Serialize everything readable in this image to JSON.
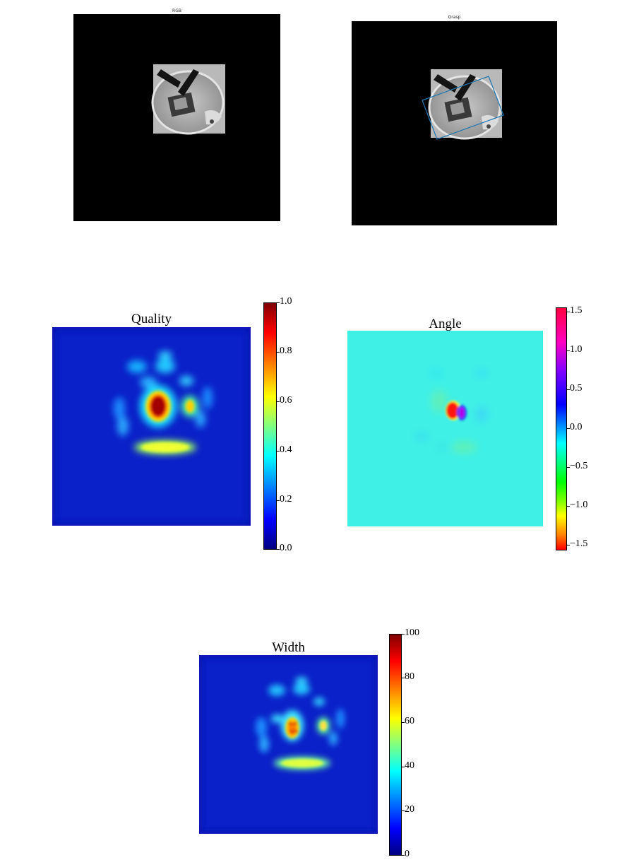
{
  "panels": {
    "rgb": {
      "title": "RGB"
    },
    "grasp": {
      "title": "Grasp"
    },
    "quality": {
      "title": "Quality",
      "colorbar": {
        "colormap": "jet",
        "ticks": [
          "1.0",
          "0.8",
          "0.6",
          "0.4",
          "0.2",
          "0.0"
        ]
      }
    },
    "angle": {
      "title": "Angle",
      "colorbar": {
        "colormap": "hsv",
        "ticks": [
          "1.5",
          "1.0",
          "0.5",
          "0.0",
          "−0.5",
          "−1.0",
          "−1.5"
        ]
      }
    },
    "width": {
      "title": "Width",
      "colorbar": {
        "colormap": "jet",
        "ticks": [
          "100",
          "80",
          "60",
          "40",
          "20",
          "0"
        ]
      }
    }
  },
  "colors": {
    "background_black": "#000000",
    "jet_dark_blue": "#00008f",
    "jet_blue": "#0a1fd0",
    "angle_background": "#3ff0e6",
    "grasp_rect": "#1f77b4"
  }
}
